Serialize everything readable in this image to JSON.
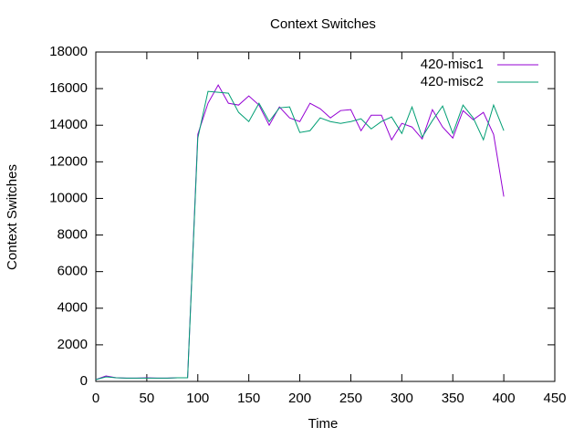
{
  "chart_data": {
    "type": "line",
    "title": "Context Switches",
    "x_label": "Time",
    "y_label": "Context Switches",
    "x": [
      0,
      10,
      20,
      30,
      40,
      50,
      60,
      70,
      80,
      90,
      100,
      110,
      120,
      130,
      140,
      150,
      160,
      170,
      180,
      190,
      200,
      210,
      220,
      230,
      240,
      250,
      260,
      270,
      280,
      290,
      300,
      310,
      320,
      330,
      340,
      350,
      360,
      370,
      380,
      390,
      400
    ],
    "series": [
      {
        "name": "420-misc1",
        "color": "#9400d3",
        "values": [
          100,
          300,
          200,
          180,
          180,
          200,
          180,
          180,
          200,
          200,
          13500,
          15200,
          16200,
          15200,
          15100,
          15600,
          15100,
          14000,
          15000,
          14400,
          14200,
          15200,
          14900,
          14400,
          14800,
          14850,
          13700,
          14550,
          14550,
          13200,
          14100,
          13900,
          13250,
          14850,
          13900,
          13300,
          14800,
          14300,
          14700,
          13500,
          10100
        ]
      },
      {
        "name": "420-misc2",
        "color": "#009e73",
        "values": [
          100,
          250,
          200,
          180,
          180,
          180,
          180,
          180,
          200,
          200,
          13300,
          15850,
          15800,
          15750,
          14700,
          14200,
          15200,
          14200,
          14950,
          15000,
          13600,
          13700,
          14400,
          14200,
          14100,
          14200,
          14350,
          13800,
          14200,
          14450,
          13550,
          15000,
          13350,
          14250,
          15050,
          13550,
          15100,
          14400,
          13200,
          15100,
          13700
        ]
      }
    ],
    "xlim": [
      0,
      450
    ],
    "xticks": [
      0,
      50,
      100,
      150,
      200,
      250,
      300,
      350,
      400,
      450
    ],
    "ylim": [
      0,
      18000
    ],
    "yticks": [
      0,
      2000,
      4000,
      6000,
      8000,
      10000,
      12000,
      14000,
      16000,
      18000
    ],
    "legend": "top-right",
    "grid": false
  }
}
